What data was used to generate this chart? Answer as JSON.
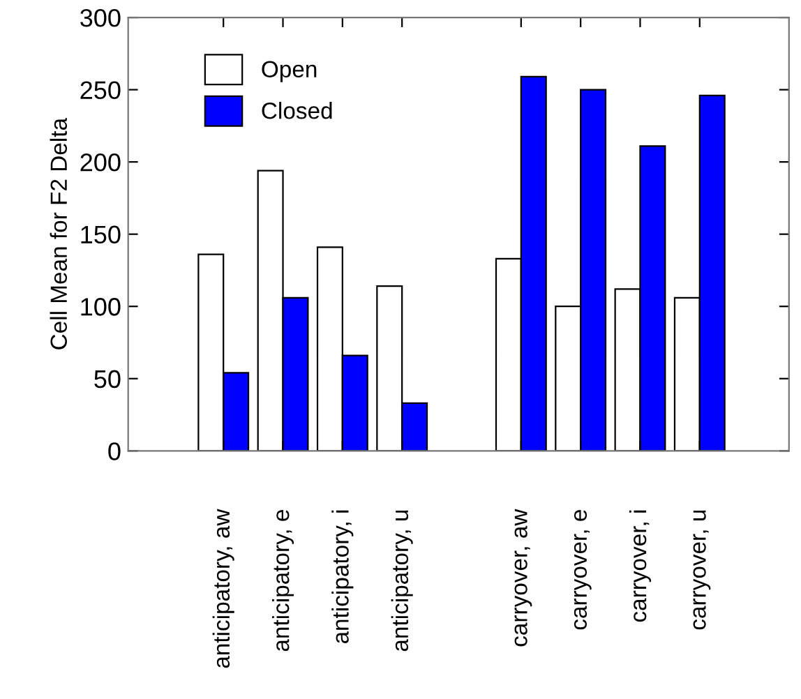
{
  "chart_data": {
    "type": "bar",
    "ylabel": "Cell Mean for F2 Delta",
    "categories": [
      "anticipatory, aw",
      "anticipatory, e",
      "anticipatory, i",
      "anticipatory, u",
      null,
      "carryover, aw",
      "carryover, e",
      "carryover, i",
      "carryover, u"
    ],
    "series": [
      {
        "name": "Open",
        "color": "#ffffff",
        "values": [
          136,
          194,
          141,
          114,
          null,
          133,
          100,
          112,
          106
        ]
      },
      {
        "name": "Closed",
        "color": "#0000ff",
        "values": [
          54,
          106,
          66,
          33,
          null,
          259,
          250,
          211,
          246
        ]
      }
    ],
    "ylim": [
      0,
      300
    ],
    "yticks": [
      0,
      50,
      100,
      150,
      200,
      250,
      300
    ],
    "grid": false,
    "legend": "top left"
  }
}
